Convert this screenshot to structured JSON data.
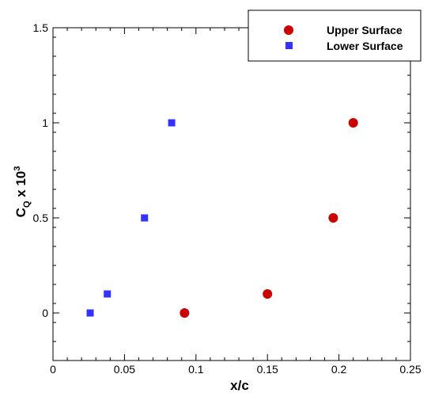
{
  "chart_data": {
    "type": "scatter",
    "xlabel": "x/c",
    "ylabel_main": "C",
    "ylabel_sub": "Q",
    "ylabel_rest": " x 10",
    "ylabel_sup": "3",
    "xlim": [
      0,
      0.25
    ],
    "ylim": [
      -0.25,
      1.5
    ],
    "x_ticks": [
      0,
      0.05,
      0.1,
      0.15,
      0.2,
      0.25
    ],
    "x_tick_labels": [
      "0",
      "0.05",
      "0.1",
      "0.15",
      "0.2",
      "0.25"
    ],
    "y_ticks": [
      0,
      0.5,
      1,
      1.5
    ],
    "y_tick_labels": [
      "0",
      "0.5",
      "1",
      "1.5"
    ],
    "grid": false,
    "legend_position": "top-right",
    "series": [
      {
        "name": "Upper Surface",
        "marker": "circle",
        "color": "#cc0000",
        "x": [
          0.092,
          0.15,
          0.196,
          0.21
        ],
        "y": [
          0,
          0.1,
          0.5,
          1.0
        ]
      },
      {
        "name": "Lower Surface",
        "marker": "square",
        "color": "#3333ff",
        "x": [
          0.026,
          0.038,
          0.064,
          0.083
        ],
        "y": [
          0,
          0.1,
          0.5,
          1.0
        ]
      }
    ]
  }
}
